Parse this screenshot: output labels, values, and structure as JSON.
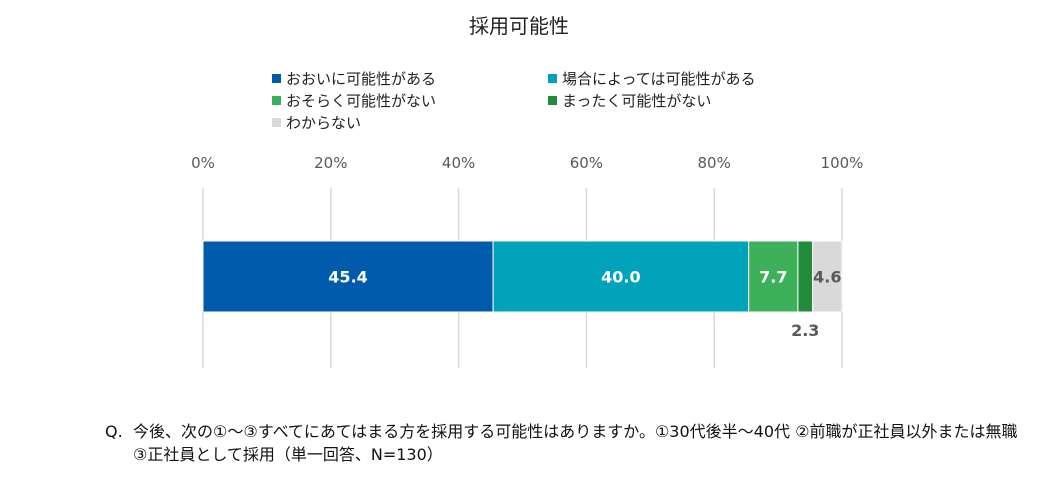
{
  "chart_data": {
    "type": "bar",
    "orientation": "horizontal-stacked-100",
    "title": "採用可能性",
    "x_ticks": [
      "0%",
      "20%",
      "40%",
      "60%",
      "80%",
      "100%"
    ],
    "xlim": [
      0,
      100
    ],
    "grid": true,
    "legend_placement": "top",
    "series": [
      {
        "name": "おおいに可能性がある",
        "value": 45.4,
        "label": "45.4",
        "color": "#005BAC"
      },
      {
        "name": "場合によっては可能性がある",
        "value": 40.0,
        "label": "40.0",
        "color": "#00A3B9"
      },
      {
        "name": "おそらく可能性がない",
        "value": 7.7,
        "label": "7.7",
        "color": "#3CB15A"
      },
      {
        "name": "まったく可能性がない",
        "value": 2.3,
        "label": "2.3",
        "color": "#228B3B"
      },
      {
        "name": "わからない",
        "value": 4.6,
        "label": "4.6",
        "color": "#D9D9D9"
      }
    ]
  },
  "question": {
    "label": "Q.",
    "text": "今後、次の①～③すべてにあてはまる方を採用する可能性はありますか。①30代後半～40代 ②前職が正社員以外または無職 ③正社員として採用（単一回答、N=130）"
  }
}
